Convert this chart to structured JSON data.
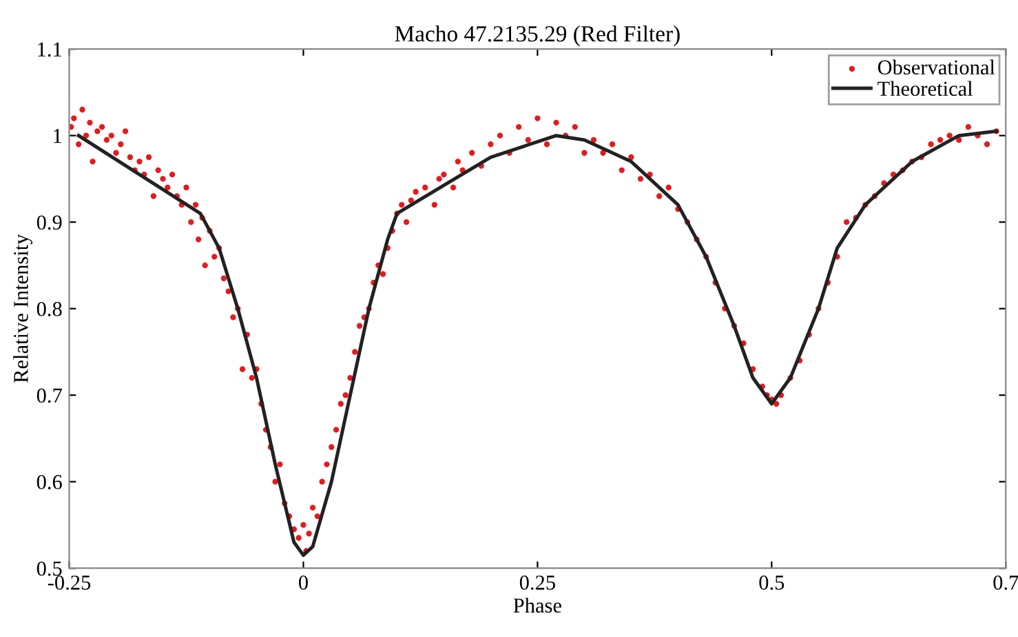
{
  "chart_data": {
    "type": "scatter",
    "title": "Macho 47.2135.29 (Red Filter)",
    "xlabel": "Phase",
    "ylabel": "Relative Intensity",
    "xlim": [
      -0.25,
      0.75
    ],
    "xticks": [
      -0.25,
      0,
      0.25,
      0.5,
      {
        "value": 0.75,
        "label": "0.7"
      }
    ],
    "ylim": [
      0.5,
      1.1
    ],
    "yticks": [
      0.5,
      0.6,
      0.7,
      0.8,
      0.9,
      {
        "value": 1.0,
        "label": "1"
      },
      1.1
    ],
    "grid": false,
    "legend": "top right",
    "series": [
      {
        "name": "Observational",
        "color": "#e8191c",
        "marker": "circle",
        "x": [
          -0.248,
          -0.245,
          -0.24,
          -0.236,
          -0.232,
          -0.228,
          -0.225,
          -0.22,
          -0.215,
          -0.21,
          -0.205,
          -0.2,
          -0.195,
          -0.19,
          -0.185,
          -0.18,
          -0.175,
          -0.17,
          -0.165,
          -0.16,
          -0.155,
          -0.15,
          -0.145,
          -0.14,
          -0.135,
          -0.13,
          -0.125,
          -0.12,
          -0.115,
          -0.112,
          -0.108,
          -0.105,
          -0.1,
          -0.095,
          -0.09,
          -0.085,
          -0.08,
          -0.075,
          -0.07,
          -0.065,
          -0.06,
          -0.055,
          -0.05,
          -0.045,
          -0.04,
          -0.035,
          -0.03,
          -0.025,
          -0.02,
          -0.015,
          -0.01,
          -0.005,
          0,
          0.003,
          0.006,
          0.01,
          0.015,
          0.02,
          0.025,
          0.03,
          0.035,
          0.04,
          0.045,
          0.05,
          0.055,
          0.06,
          0.065,
          0.07,
          0.075,
          0.08,
          0.085,
          0.09,
          0.095,
          0.1,
          0.105,
          0.11,
          0.115,
          0.12,
          0.13,
          0.14,
          0.145,
          0.15,
          0.16,
          0.165,
          0.17,
          0.18,
          0.19,
          0.2,
          0.21,
          0.22,
          0.23,
          0.24,
          0.25,
          0.26,
          0.27,
          0.28,
          0.29,
          0.3,
          0.31,
          0.32,
          0.33,
          0.34,
          0.35,
          0.36,
          0.37,
          0.38,
          0.39,
          0.4,
          0.41,
          0.42,
          0.43,
          0.44,
          0.45,
          0.46,
          0.47,
          0.48,
          0.49,
          0.495,
          0.5,
          0.505,
          0.51,
          0.52,
          0.53,
          0.54,
          0.55,
          0.56,
          0.57,
          0.58,
          0.59,
          0.6,
          0.61,
          0.62,
          0.63,
          0.64,
          0.65,
          0.66,
          0.67,
          0.68,
          0.69,
          0.7,
          0.71,
          0.72,
          0.73,
          0.74
        ],
        "values": [
          1.01,
          1.02,
          0.99,
          1.03,
          1.0,
          1.015,
          0.97,
          1.005,
          1.01,
          0.995,
          1.0,
          0.98,
          0.99,
          1.005,
          0.975,
          0.96,
          0.97,
          0.955,
          0.975,
          0.93,
          0.96,
          0.95,
          0.94,
          0.955,
          0.93,
          0.92,
          0.94,
          0.9,
          0.92,
          0.88,
          0.905,
          0.85,
          0.89,
          0.86,
          0.87,
          0.835,
          0.82,
          0.79,
          0.8,
          0.73,
          0.77,
          0.72,
          0.73,
          0.69,
          0.66,
          0.64,
          0.6,
          0.62,
          0.575,
          0.56,
          0.545,
          0.535,
          0.55,
          0.52,
          0.54,
          0.57,
          0.56,
          0.6,
          0.62,
          0.64,
          0.66,
          0.69,
          0.7,
          0.72,
          0.75,
          0.78,
          0.79,
          0.8,
          0.83,
          0.85,
          0.84,
          0.87,
          0.89,
          0.91,
          0.92,
          0.9,
          0.925,
          0.935,
          0.94,
          0.92,
          0.95,
          0.955,
          0.94,
          0.97,
          0.96,
          0.98,
          0.965,
          0.99,
          1.0,
          0.98,
          1.01,
          0.995,
          1.02,
          0.99,
          1.015,
          1.0,
          1.01,
          0.98,
          0.995,
          0.98,
          0.99,
          0.96,
          0.975,
          0.95,
          0.955,
          0.93,
          0.94,
          0.915,
          0.9,
          0.88,
          0.86,
          0.83,
          0.8,
          0.78,
          0.76,
          0.73,
          0.71,
          0.7,
          0.695,
          0.69,
          0.7,
          0.72,
          0.74,
          0.77,
          0.8,
          0.83,
          0.86,
          0.9,
          0.905,
          0.92,
          0.93,
          0.945,
          0.955,
          0.96,
          0.97,
          0.975,
          0.99,
          0.995,
          1.0,
          0.995,
          1.01,
          1.0,
          0.99,
          1.005
        ]
      },
      {
        "name": "Theoretical",
        "type": "line",
        "color": "#222222",
        "marker": "none",
        "line_style": "solid",
        "x": [
          -0.24,
          -0.11,
          -0.09,
          -0.07,
          -0.05,
          -0.03,
          -0.01,
          0,
          0.01,
          0.03,
          0.05,
          0.07,
          0.09,
          0.1,
          0.2,
          0.27,
          0.3,
          0.35,
          0.4,
          0.43,
          0.46,
          0.48,
          0.5,
          0.52,
          0.55,
          0.57,
          0.6,
          0.65,
          0.7,
          0.74
        ],
        "values": [
          1.0,
          0.91,
          0.87,
          0.8,
          0.72,
          0.62,
          0.53,
          0.515,
          0.525,
          0.6,
          0.7,
          0.8,
          0.88,
          0.91,
          0.975,
          1.0,
          0.995,
          0.97,
          0.92,
          0.86,
          0.78,
          0.72,
          0.69,
          0.72,
          0.8,
          0.87,
          0.92,
          0.97,
          1.0,
          1.005
        ]
      }
    ]
  }
}
